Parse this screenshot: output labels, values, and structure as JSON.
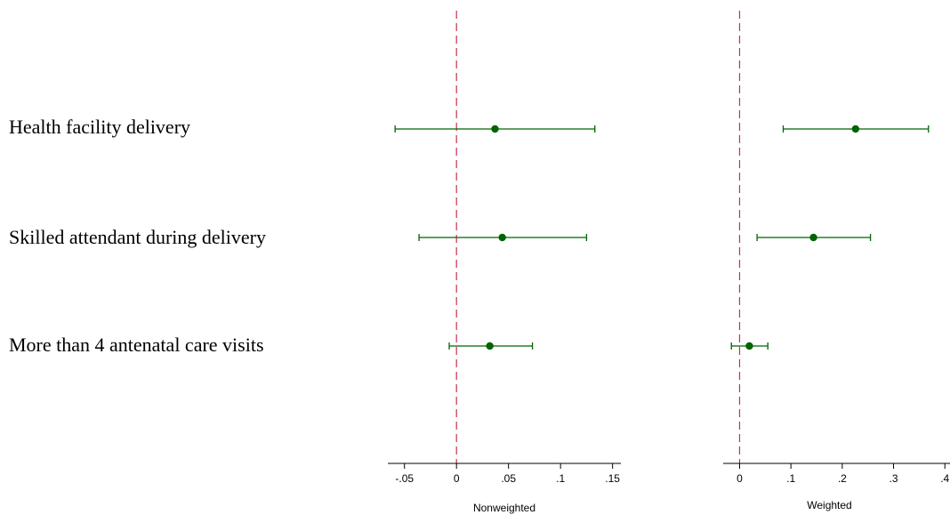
{
  "chart_data": {
    "type": "coefficient-plot",
    "categories": [
      "Health facility delivery",
      "Skilled attendant during delivery",
      "More than 4 antenatal care visits"
    ],
    "panels": [
      {
        "xlabel": "Nonweighted",
        "xlim": [
          -0.066,
          0.158
        ],
        "ticks": [
          -0.05,
          0,
          0.05,
          0.1,
          0.15
        ],
        "tick_labels": [
          "-.05",
          "0",
          ".05",
          ".1",
          ".15"
        ],
        "reference_line": 0,
        "estimates": [
          {
            "category": "Health facility delivery",
            "point": 0.037,
            "lower": -0.059,
            "upper": 0.133
          },
          {
            "category": "Skilled attendant during delivery",
            "point": 0.044,
            "lower": -0.036,
            "upper": 0.125
          },
          {
            "category": "More than 4 antenatal care visits",
            "point": 0.032,
            "lower": -0.007,
            "upper": 0.073
          }
        ]
      },
      {
        "xlabel": "Weighted",
        "xlim": [
          -0.032,
          0.41
        ],
        "ticks": [
          0,
          0.1,
          0.2,
          0.3,
          0.4
        ],
        "tick_labels": [
          "0",
          ".1",
          ".2",
          ".3",
          ".4"
        ],
        "reference_line": 0,
        "estimates": [
          {
            "category": "Health facility delivery",
            "point": 0.226,
            "lower": 0.085,
            "upper": 0.368
          },
          {
            "category": "Skilled attendant during delivery",
            "point": 0.144,
            "lower": 0.034,
            "upper": 0.255
          },
          {
            "category": "More than 4 antenatal care visits",
            "point": 0.019,
            "lower": -0.016,
            "upper": 0.055
          }
        ]
      }
    ],
    "colors": {
      "estimate": "#006400",
      "reference_line": "#c8304d",
      "axis": "#000000"
    },
    "grid": false
  }
}
